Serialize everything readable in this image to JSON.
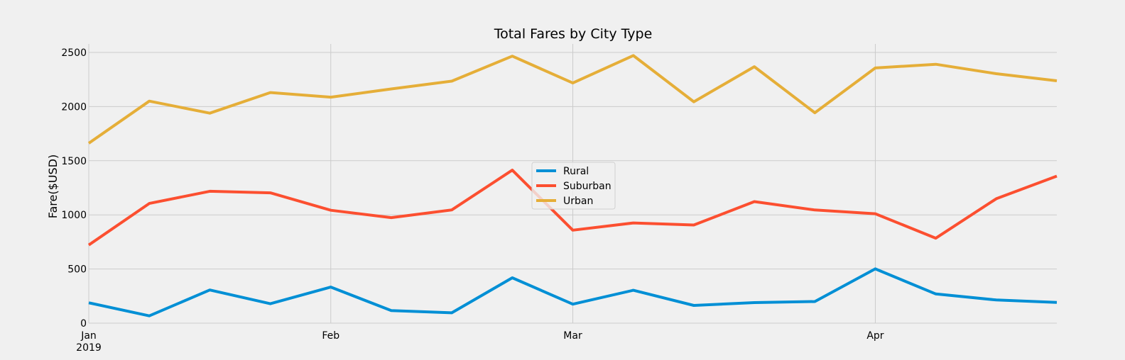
{
  "chart_data": {
    "type": "line",
    "title": "Total Fares by City Type",
    "xlabel": "",
    "ylabel": "Fare($USD)",
    "ylim": [
      0,
      2580
    ],
    "yticks": [
      0,
      500,
      1000,
      1500,
      2000,
      2500
    ],
    "x": [
      "2019-01-06",
      "2019-01-13",
      "2019-01-20",
      "2019-01-27",
      "2019-02-03",
      "2019-02-10",
      "2019-02-17",
      "2019-02-24",
      "2019-03-03",
      "2019-03-10",
      "2019-03-17",
      "2019-03-24",
      "2019-03-31",
      "2019-04-07",
      "2019-04-14",
      "2019-04-21",
      "2019-04-28"
    ],
    "xticks": [
      {
        "index": 0,
        "label": "Jan",
        "sublabel": "2019"
      },
      {
        "index": 4,
        "label": "Feb",
        "sublabel": ""
      },
      {
        "index": 8,
        "label": "Mar",
        "sublabel": ""
      },
      {
        "index": 13,
        "label": "Apr",
        "sublabel": ""
      }
    ],
    "grid": true,
    "legend_placement": "center",
    "series": [
      {
        "name": "Rural",
        "color": "#008fd5",
        "values": [
          187.92,
          67.65,
          306.0,
          179.4,
          333.08,
          115.8,
          95.82,
          419.06,
          175.14,
          303.94,
          163.39,
          189.76,
          199.42,
          501.24,
          269.79,
          214.14,
          191.85
        ]
      },
      {
        "name": "Suburban",
        "color": "#fc4f30",
        "values": [
          721.6,
          1105.13,
          1218.2,
          1203.28,
          1042.79,
          974.34,
          1045.5,
          1412.74,
          858.46,
          925.27,
          906.2,
          1122.2,
          1045.06,
          1010.73,
          784.82,
          1149.27,
          1357.75
        ]
      },
      {
        "name": "Urban",
        "color": "#e5ae38",
        "values": [
          1661.68,
          2050.43,
          1939.02,
          2129.51,
          2086.94,
          2162.64,
          2235.07,
          2466.29,
          2218.2,
          2470.93,
          2044.42,
          2368.37,
          1942.77,
          2356.7,
          2390.72,
          2303.8,
          2238.29
        ]
      }
    ]
  }
}
